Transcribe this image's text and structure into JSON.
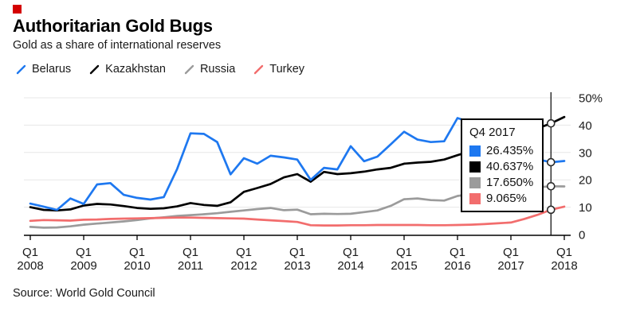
{
  "brand": {
    "logo_color": "#d40000"
  },
  "header": {
    "title": "Authoritarian Gold Bugs",
    "subtitle": "Gold as a share of international reserves"
  },
  "legend": {
    "items": [
      {
        "label": "Belarus",
        "color": "#1e78f0"
      },
      {
        "label": "Kazakhstan",
        "color": "#000000"
      },
      {
        "label": "Russia",
        "color": "#9b9b9b"
      },
      {
        "label": "Turkey",
        "color": "#f26d6d"
      }
    ]
  },
  "chart_data": {
    "type": "line",
    "title": "Authoritarian Gold Bugs",
    "subtitle": "Gold as a share of international reserves",
    "x_resolution": "quarterly",
    "x_range": [
      "Q1 2008",
      "Q1 2018"
    ],
    "x_tick_quarter_label": "Q1",
    "x_tick_years": [
      "2008",
      "2009",
      "2010",
      "2011",
      "2012",
      "2013",
      "2014",
      "2015",
      "2016",
      "2017",
      "2018"
    ],
    "ylim": [
      0,
      50
    ],
    "y_ticks": [
      0,
      10,
      20,
      30,
      40,
      50
    ],
    "y_tick_labels": [
      "0",
      "10",
      "20",
      "30",
      "40",
      "50%"
    ],
    "grid": "horizontal",
    "y_axis_side": "right",
    "series": [
      {
        "name": "Belarus",
        "color": "#1e78f0",
        "values": [
          11.3,
          10.2,
          9.0,
          13.2,
          11.2,
          18.3,
          18.8,
          14.5,
          13.4,
          12.8,
          13.7,
          24.0,
          37.0,
          36.8,
          33.8,
          22.0,
          27.9,
          25.9,
          28.8,
          28.2,
          27.4,
          20.0,
          24.4,
          23.8,
          32.3,
          26.8,
          28.5,
          33.0,
          37.6,
          34.7,
          33.8,
          34.1,
          42.6,
          41.0,
          38.0,
          35.0,
          32.0,
          29.5,
          27.5,
          26.435,
          26.9
        ]
      },
      {
        "name": "Kazakhstan",
        "color": "#000000",
        "values": [
          10.0,
          9.0,
          8.8,
          9.2,
          10.6,
          11.2,
          11.0,
          10.4,
          9.7,
          9.4,
          9.6,
          10.3,
          11.5,
          10.8,
          10.5,
          11.8,
          15.6,
          17.0,
          18.5,
          20.9,
          22.1,
          19.3,
          22.9,
          22.1,
          22.4,
          23.0,
          23.8,
          24.4,
          25.9,
          26.3,
          26.6,
          27.4,
          29.0,
          30.5,
          32.0,
          34.0,
          35.5,
          37.0,
          38.8,
          40.637,
          43.0
        ]
      },
      {
        "name": "Russia",
        "color": "#9b9b9b",
        "values": [
          2.8,
          2.5,
          2.6,
          3.0,
          3.6,
          4.0,
          4.4,
          4.8,
          5.3,
          5.9,
          6.3,
          6.8,
          7.1,
          7.4,
          7.8,
          8.3,
          8.8,
          9.3,
          9.7,
          8.9,
          9.1,
          7.4,
          7.6,
          7.5,
          7.6,
          8.2,
          8.8,
          10.5,
          12.9,
          13.2,
          12.6,
          12.4,
          14.1,
          14.8,
          15.3,
          15.9,
          16.2,
          16.9,
          17.3,
          17.65,
          17.6
        ]
      },
      {
        "name": "Turkey",
        "color": "#f26d6d",
        "values": [
          5.0,
          5.3,
          5.2,
          5.1,
          5.4,
          5.5,
          5.7,
          5.8,
          5.9,
          6.0,
          6.1,
          6.2,
          6.2,
          6.1,
          6.0,
          5.9,
          5.8,
          5.5,
          5.2,
          4.9,
          4.6,
          3.4,
          3.3,
          3.3,
          3.4,
          3.4,
          3.5,
          3.5,
          3.5,
          3.5,
          3.4,
          3.4,
          3.5,
          3.6,
          3.8,
          4.1,
          4.4,
          5.7,
          7.2,
          9.065,
          10.2
        ]
      }
    ],
    "crosshair": {
      "label": "Q4 2017",
      "x_index": 39,
      "values": [
        26.435,
        40.637,
        17.65,
        9.065
      ]
    }
  },
  "tooltip": {
    "title": "Q4 2017",
    "rows": [
      {
        "series": "Belarus",
        "color": "#1e78f0",
        "value": "26.435%"
      },
      {
        "series": "Kazakhstan",
        "color": "#000000",
        "value": "40.637%"
      },
      {
        "series": "Russia",
        "color": "#9b9b9b",
        "value": "17.650%"
      },
      {
        "series": "Turkey",
        "color": "#f26d6d",
        "value": "9.065%"
      }
    ]
  },
  "footer": {
    "source": "Source: World Gold Council"
  }
}
